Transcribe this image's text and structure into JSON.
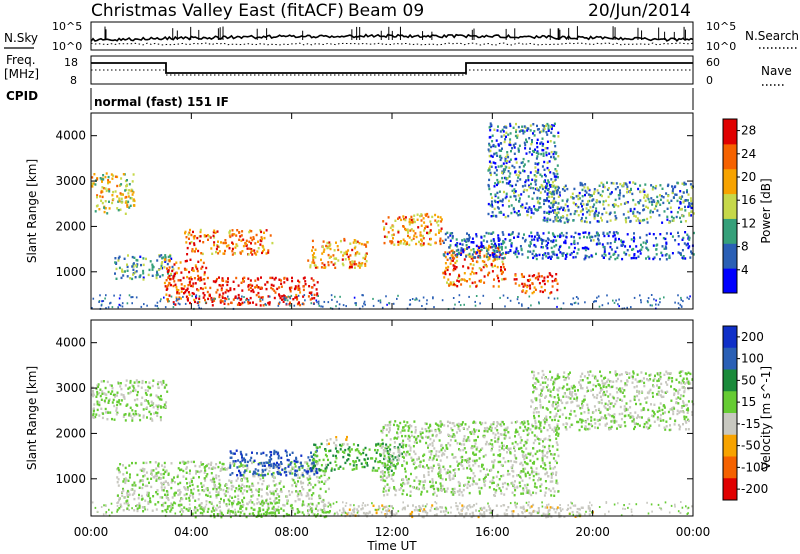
{
  "header": {
    "title": "Christmas Valley East (fitACF)",
    "beam": "Beam 09",
    "date": "20/Jun/2014"
  },
  "top_panels": {
    "nsky_label": "N.Sky",
    "nsky_ticks": [
      "10^5",
      "10^0"
    ],
    "nsearch_label": "N.Search",
    "nsearch_ticks": [
      "10^5",
      "10^0"
    ],
    "freq_label_1": "Freq.",
    "freq_label_2": "[MHz]",
    "freq_ticks": [
      "18",
      "8"
    ],
    "nave_label": "Nave",
    "nave_ticks": [
      "60",
      "0"
    ],
    "cpid_label": "CPID",
    "cpid_text": "normal (fast) 151 IF"
  },
  "chart_data": [
    {
      "type": "heatmap",
      "title": "",
      "xlabel": "Time UT",
      "ylabel": "Slant Range [km]",
      "xlim": [
        0,
        24
      ],
      "ylim": [
        180,
        4500
      ],
      "yticks": [
        "1000",
        "2000",
        "3000",
        "4000"
      ],
      "colorbar": {
        "label": "Power [dB]",
        "ticks": [
          "4",
          "8",
          "12",
          "16",
          "20",
          "24",
          "28"
        ],
        "range": [
          0,
          30
        ],
        "colors": [
          "#0000ff",
          "#2a5fb5",
          "#36a07a",
          "#c6d84a",
          "#f7a300",
          "#f56200",
          "#e00000"
        ]
      },
      "echo_regions": [
        {
          "t0": 0.0,
          "t1": 1.7,
          "r0": 2300,
          "r1": 3200,
          "power": 16
        },
        {
          "t0": 0.9,
          "t1": 3.3,
          "r0": 850,
          "r1": 1400,
          "power": 10
        },
        {
          "t0": 2.9,
          "t1": 4.6,
          "r0": 300,
          "r1": 1300,
          "power": 26
        },
        {
          "t0": 4.6,
          "t1": 9.0,
          "r0": 280,
          "r1": 900,
          "power": 28
        },
        {
          "t0": 3.7,
          "t1": 7.2,
          "r0": 1400,
          "r1": 1950,
          "power": 22
        },
        {
          "t0": 8.6,
          "t1": 11.0,
          "r0": 1100,
          "r1": 1750,
          "power": 20
        },
        {
          "t0": 11.6,
          "t1": 14.0,
          "r0": 1600,
          "r1": 2300,
          "power": 20
        },
        {
          "t0": 14.0,
          "t1": 16.5,
          "r0": 700,
          "r1": 1600,
          "power": 22
        },
        {
          "t0": 16.8,
          "t1": 18.6,
          "r0": 550,
          "r1": 1000,
          "power": 25
        },
        {
          "t0": 15.8,
          "t1": 18.6,
          "r0": 2200,
          "r1": 4300,
          "power": 8
        },
        {
          "t0": 18.0,
          "t1": 24.0,
          "r0": 2100,
          "r1": 3000,
          "power": 10
        },
        {
          "t0": 14.0,
          "t1": 24.0,
          "r0": 1300,
          "r1": 1900,
          "power": 6
        }
      ]
    },
    {
      "type": "heatmap",
      "title": "",
      "xlabel": "Time UT",
      "ylabel": "Slant Range [km]",
      "xlim": [
        0,
        24
      ],
      "ylim": [
        180,
        4500
      ],
      "xticks": [
        "00:00",
        "04:00",
        "08:00",
        "12:00",
        "16:00",
        "20:00",
        "00:00"
      ],
      "yticks": [
        "1000",
        "2000",
        "3000",
        "4000"
      ],
      "colorbar": {
        "label": "Velocity [m s^-1]",
        "ticks": [
          "200",
          "100",
          "50",
          "15",
          "-15",
          "-50",
          "-100",
          "-200"
        ],
        "range": [
          -250,
          250
        ],
        "colors": [
          "#1030c8",
          "#2a5fb5",
          "#1a8a3a",
          "#66cc33",
          "#c8c8c0",
          "#f7a300",
          "#f56200",
          "#e00000"
        ]
      },
      "echo_regions": [
        {
          "t0": 0.0,
          "t1": 3.0,
          "r0": 2300,
          "r1": 3200,
          "velocity": 0
        },
        {
          "t0": 1.0,
          "t1": 9.5,
          "r0": 300,
          "r1": 1400,
          "velocity": 0
        },
        {
          "t0": 4.0,
          "t1": 9.5,
          "r0": 180,
          "r1": 380,
          "velocity": 40
        },
        {
          "t0": 5.5,
          "t1": 9.0,
          "r0": 1100,
          "r1": 1650,
          "velocity": 180
        },
        {
          "t0": 8.8,
          "t1": 12.5,
          "r0": 1200,
          "r1": 1800,
          "velocity": 60
        },
        {
          "t0": 9.3,
          "t1": 10.2,
          "r0": 1750,
          "r1": 1950,
          "velocity": -60
        },
        {
          "t0": 11.5,
          "t1": 18.6,
          "r0": 650,
          "r1": 2300,
          "velocity": 0
        },
        {
          "t0": 17.5,
          "t1": 24.0,
          "r0": 2100,
          "r1": 3400,
          "velocity": 0
        },
        {
          "t0": 10.0,
          "t1": 20.0,
          "r0": 180,
          "r1": 450,
          "velocity": -50
        }
      ]
    }
  ]
}
